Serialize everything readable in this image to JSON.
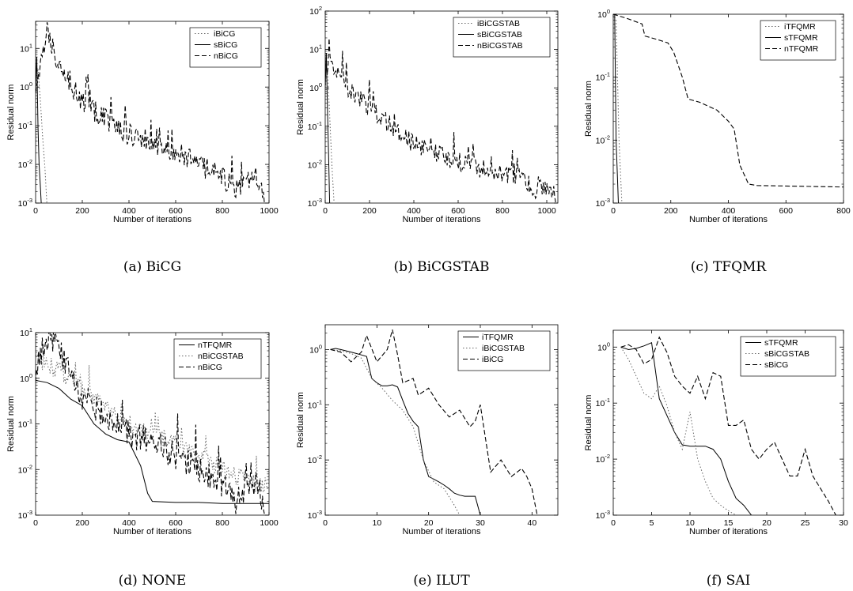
{
  "chart_data": [
    {
      "type": "line",
      "caption": "(a) BiCG",
      "xlabel": "Number of iterations",
      "ylabel": "Residual norm",
      "xlim": [
        0,
        1000
      ],
      "ylim_exp": [
        -3,
        1.7
      ],
      "y_scale": "log",
      "xticks": [
        "0",
        "200",
        "400",
        "600",
        "800",
        "1000"
      ],
      "yticks": [
        {
          "exp": "-3",
          "value": 0.001
        },
        {
          "exp": "-2",
          "value": 0.01
        },
        {
          "exp": "-1",
          "value": 0.1
        },
        {
          "exp": "0",
          "value": 1
        },
        {
          "exp": "1",
          "value": 10
        }
      ],
      "legend_placement": "top-right",
      "series": [
        {
          "name": "iBiCG",
          "style": "dotted",
          "noise": 0,
          "x": [
            0,
            10,
            20,
            30,
            40,
            48
          ],
          "y": [
            1,
            3,
            0.5,
            0.05,
            0.008,
            0.001
          ]
        },
        {
          "name": "sBiCG",
          "style": "solid",
          "noise": 0,
          "x": [
            0,
            5,
            10,
            15,
            20,
            24
          ],
          "y": [
            1,
            6,
            0.1,
            0.01,
            0.003,
            0.001
          ]
        },
        {
          "name": "nBiCG",
          "style": "dashed",
          "noise": 0.3,
          "x": [
            0,
            20,
            50,
            80,
            120,
            160,
            200,
            300,
            400,
            500,
            600,
            700,
            800,
            860,
            900,
            950,
            980
          ],
          "y": [
            1,
            3,
            30,
            8,
            3,
            1,
            0.4,
            0.15,
            0.06,
            0.04,
            0.02,
            0.01,
            0.005,
            0.002,
            0.003,
            0.005,
            0.001
          ]
        }
      ]
    },
    {
      "type": "line",
      "caption": "(b) BiCGSTAB",
      "xlabel": "Number of iterations",
      "ylabel": "Residual norm",
      "xlim": [
        0,
        1050
      ],
      "ylim_exp": [
        -3,
        2
      ],
      "y_scale": "log",
      "xticks": [
        "0",
        "200",
        "400",
        "600",
        "800",
        "1000"
      ],
      "yticks": [
        {
          "exp": "-3",
          "value": 0.001
        },
        {
          "exp": "-2",
          "value": 0.01
        },
        {
          "exp": "-1",
          "value": 0.1
        },
        {
          "exp": "0",
          "value": 1
        },
        {
          "exp": "1",
          "value": 10
        },
        {
          "exp": "2",
          "value": 100
        }
      ],
      "legend_placement": "top-right",
      "series": [
        {
          "name": "iBiCGSTAB",
          "style": "dotted",
          "noise": 0,
          "x": [
            0,
            10,
            20,
            30,
            40
          ],
          "y": [
            1,
            3,
            0.2,
            0.01,
            0.001
          ]
        },
        {
          "name": "sBiCGSTAB",
          "style": "solid",
          "noise": 0,
          "x": [
            0,
            5,
            10,
            15,
            20
          ],
          "y": [
            1,
            8,
            0.3,
            0.02,
            0.001
          ]
        },
        {
          "name": "nBiCGSTAB",
          "style": "dashed",
          "noise": 0.25,
          "x": [
            0,
            20,
            60,
            120,
            200,
            300,
            400,
            500,
            600,
            700,
            800,
            900,
            950,
            1000,
            1040
          ],
          "y": [
            3,
            5,
            2,
            0.8,
            0.3,
            0.1,
            0.035,
            0.02,
            0.012,
            0.008,
            0.006,
            0.004,
            0.002,
            0.003,
            0.0015
          ]
        }
      ]
    },
    {
      "type": "line",
      "caption": "(c) TFQMR",
      "xlabel": "Number of iterations",
      "ylabel": "Residual norm",
      "xlim": [
        0,
        800
      ],
      "ylim_exp": [
        -3,
        0
      ],
      "y_scale": "log",
      "xticks": [
        "0",
        "200",
        "400",
        "600",
        "800"
      ],
      "yticks": [
        {
          "exp": "-3",
          "value": 0.001
        },
        {
          "exp": "-2",
          "value": 0.01
        },
        {
          "exp": "-1",
          "value": 0.1
        },
        {
          "exp": "0",
          "value": 1
        }
      ],
      "legend_placement": "top-right",
      "series": [
        {
          "name": "iTFQMR",
          "style": "dotted",
          "noise": 0,
          "x": [
            0,
            10,
            20,
            30
          ],
          "y": [
            1,
            0.8,
            0.01,
            0.001
          ]
        },
        {
          "name": "sTFQMR",
          "style": "solid",
          "noise": 0,
          "x": [
            0,
            5,
            10,
            18
          ],
          "y": [
            1,
            1,
            0.01,
            0.001
          ]
        },
        {
          "name": "nTFQMR",
          "style": "dashed",
          "noise": 0,
          "x": [
            0,
            50,
            100,
            110,
            150,
            190,
            210,
            240,
            260,
            300,
            360,
            400,
            420,
            440,
            470,
            500,
            800
          ],
          "y": [
            1,
            0.85,
            0.7,
            0.45,
            0.4,
            0.35,
            0.25,
            0.1,
            0.045,
            0.04,
            0.03,
            0.02,
            0.015,
            0.004,
            0.002,
            0.0019,
            0.0018
          ]
        }
      ]
    },
    {
      "type": "line",
      "caption": "(d) NONE",
      "xlabel": "Number of iterations",
      "ylabel": "Residual norm",
      "xlim": [
        0,
        1000
      ],
      "ylim_exp": [
        -3,
        1
      ],
      "y_scale": "log",
      "xticks": [
        "0",
        "200",
        "400",
        "600",
        "800",
        "1000"
      ],
      "yticks": [
        {
          "exp": "-3",
          "value": 0.001
        },
        {
          "exp": "-2",
          "value": 0.01
        },
        {
          "exp": "-1",
          "value": 0.1
        },
        {
          "exp": "0",
          "value": 1
        },
        {
          "exp": "1",
          "value": 10
        }
      ],
      "legend_placement": "top-right",
      "series": [
        {
          "name": "nTFQMR",
          "style": "solid",
          "noise": 0,
          "x": [
            0,
            50,
            100,
            150,
            200,
            250,
            300,
            350,
            400,
            450,
            480,
            500,
            600,
            700,
            800,
            900,
            1000
          ],
          "y": [
            0.9,
            0.8,
            0.6,
            0.35,
            0.25,
            0.1,
            0.06,
            0.045,
            0.04,
            0.012,
            0.003,
            0.002,
            0.0019,
            0.0019,
            0.0018,
            0.0018,
            0.0018
          ]
        },
        {
          "name": "nBiCGSTAB",
          "style": "dotted",
          "noise": 0.2,
          "x": [
            0,
            50,
            100,
            200,
            300,
            400,
            500,
            600,
            700,
            800,
            900,
            1000
          ],
          "y": [
            3,
            2,
            1.5,
            0.6,
            0.25,
            0.1,
            0.06,
            0.035,
            0.02,
            0.01,
            0.006,
            0.004
          ]
        },
        {
          "name": "nBiCG",
          "style": "dashed",
          "noise": 0.3,
          "x": [
            0,
            20,
            50,
            80,
            120,
            160,
            200,
            300,
            400,
            500,
            600,
            700,
            800,
            860,
            900,
            950,
            980
          ],
          "y": [
            1,
            3,
            8,
            6,
            3,
            1,
            0.4,
            0.15,
            0.06,
            0.04,
            0.02,
            0.01,
            0.005,
            0.002,
            0.003,
            0.005,
            0.001
          ]
        }
      ]
    },
    {
      "type": "line",
      "caption": "(e) ILUT",
      "xlabel": "Number of iterations",
      "ylabel": "Residual norm",
      "xlim": [
        0,
        45
      ],
      "ylim_exp": [
        -3,
        0.45
      ],
      "y_scale": "log",
      "xticks": [
        "0",
        "10",
        "20",
        "30",
        "40"
      ],
      "yticks": [
        {
          "exp": "-3",
          "value": 0.001
        },
        {
          "exp": "-2",
          "value": 0.01
        },
        {
          "exp": "-1",
          "value": 0.1
        },
        {
          "exp": "0",
          "value": 1
        }
      ],
      "legend_placement": "top-right",
      "series": [
        {
          "name": "iTFQMR",
          "style": "solid",
          "noise": 0,
          "x": [
            1,
            2,
            3,
            4,
            5,
            6,
            7,
            8,
            9,
            10,
            11,
            12,
            13,
            14,
            15,
            16,
            17,
            18,
            19,
            20,
            21,
            22,
            23,
            24,
            25,
            26,
            27,
            28,
            29,
            30
          ],
          "y": [
            1.0,
            1.05,
            1.0,
            0.95,
            0.9,
            0.85,
            0.8,
            0.75,
            0.3,
            0.25,
            0.22,
            0.22,
            0.23,
            0.21,
            0.12,
            0.07,
            0.05,
            0.04,
            0.01,
            0.005,
            0.0045,
            0.004,
            0.0035,
            0.003,
            0.0025,
            0.0023,
            0.0022,
            0.0022,
            0.0022,
            0.001
          ]
        },
        {
          "name": "iBiCGSTAB",
          "style": "dotted",
          "noise": 0,
          "x": [
            1,
            3,
            5,
            7,
            9,
            11,
            13,
            15,
            17,
            19,
            21,
            23,
            25,
            26
          ],
          "y": [
            1.0,
            0.95,
            0.85,
            0.7,
            0.3,
            0.2,
            0.12,
            0.08,
            0.04,
            0.01,
            0.004,
            0.003,
            0.0015,
            0.001
          ]
        },
        {
          "name": "iBiCG",
          "style": "dashed",
          "noise": 0,
          "x": [
            1,
            3,
            5,
            7,
            8,
            10,
            12,
            13,
            14,
            15,
            17,
            18,
            20,
            22,
            24,
            26,
            28,
            29,
            30,
            32,
            34,
            36,
            38,
            39,
            40,
            41
          ],
          "y": [
            1.0,
            0.9,
            0.6,
            0.9,
            1.8,
            0.6,
            1.0,
            2.3,
            0.8,
            0.25,
            0.3,
            0.15,
            0.2,
            0.1,
            0.06,
            0.08,
            0.04,
            0.05,
            0.1,
            0.006,
            0.01,
            0.005,
            0.007,
            0.005,
            0.003,
            0.001
          ]
        }
      ]
    },
    {
      "type": "line",
      "caption": "(f) SAI",
      "xlabel": "Number of iterations",
      "ylabel": "Residual norm",
      "xlim": [
        0,
        30
      ],
      "ylim_exp": [
        -3,
        0.3
      ],
      "y_scale": "log",
      "xticks": [
        "0",
        "5",
        "10",
        "15",
        "20",
        "25",
        "30"
      ],
      "yticks": [
        {
          "exp": "-3",
          "value": 0.001
        },
        {
          "exp": "-2",
          "value": 0.01
        },
        {
          "exp": "-1",
          "value": 0.1
        },
        {
          "exp": "0",
          "value": 1
        }
      ],
      "legend_placement": "top-right",
      "series": [
        {
          "name": "sTFQMR",
          "style": "solid",
          "noise": 0,
          "x": [
            1,
            2,
            3,
            4,
            5,
            6,
            7,
            8,
            9,
            10,
            11,
            12,
            13,
            14,
            15,
            16,
            17,
            18
          ],
          "y": [
            1.0,
            0.9,
            0.95,
            1.05,
            1.2,
            0.12,
            0.06,
            0.03,
            0.018,
            0.017,
            0.017,
            0.017,
            0.015,
            0.01,
            0.004,
            0.002,
            0.0015,
            0.001
          ]
        },
        {
          "name": "sBiCGSTAB",
          "style": "dotted",
          "noise": 0,
          "x": [
            1,
            2,
            3,
            4,
            5,
            6,
            7,
            8,
            9,
            10,
            11,
            12,
            13,
            14,
            15,
            16
          ],
          "y": [
            1.0,
            0.6,
            0.3,
            0.15,
            0.12,
            0.2,
            0.09,
            0.03,
            0.015,
            0.07,
            0.01,
            0.004,
            0.002,
            0.0015,
            0.0012,
            0.001
          ]
        },
        {
          "name": "sBiCG",
          "style": "dashed",
          "noise": 0,
          "x": [
            1,
            2,
            3,
            4,
            5,
            6,
            7,
            8,
            9,
            10,
            11,
            12,
            13,
            14,
            15,
            16,
            17,
            18,
            19,
            20,
            21,
            22,
            23,
            24,
            25,
            26,
            27,
            28,
            29
          ],
          "y": [
            1.0,
            1.1,
            0.9,
            0.5,
            0.6,
            1.5,
            0.8,
            0.3,
            0.2,
            0.15,
            0.3,
            0.12,
            0.35,
            0.3,
            0.04,
            0.04,
            0.05,
            0.015,
            0.01,
            0.015,
            0.02,
            0.01,
            0.005,
            0.005,
            0.015,
            0.005,
            0.003,
            0.0018,
            0.001
          ]
        }
      ]
    }
  ]
}
